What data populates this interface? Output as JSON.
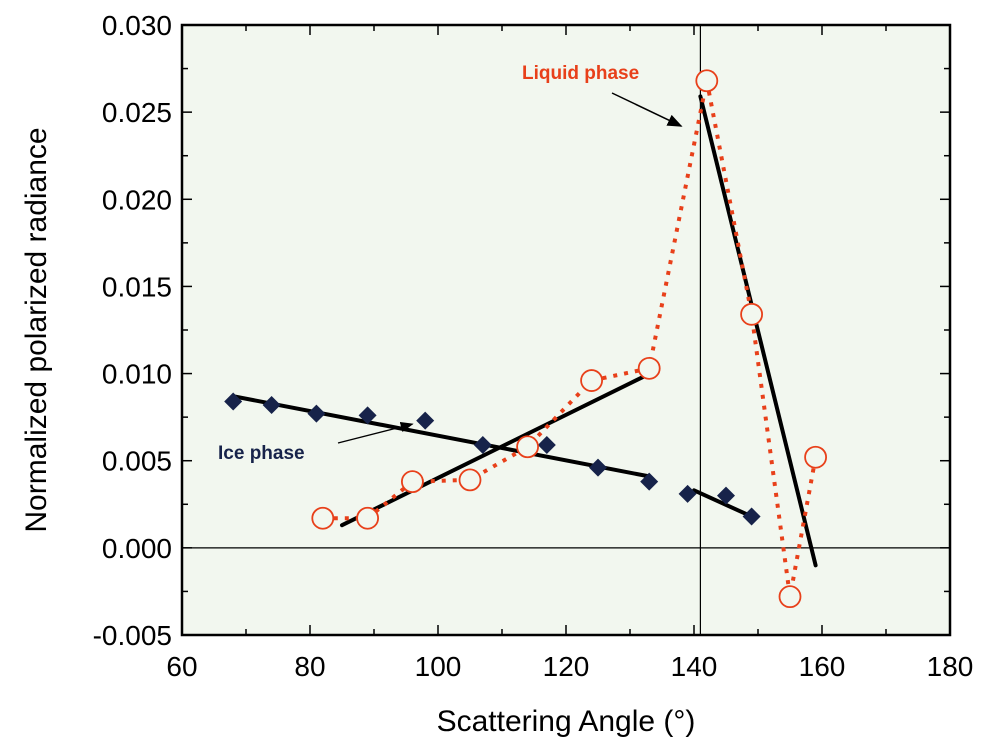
{
  "chart_data": {
    "type": "scatter",
    "title": "",
    "xlabel": "Scattering Angle (°)",
    "ylabel": "Normalized polarized radiance",
    "xlim": [
      60,
      180
    ],
    "ylim": [
      -0.005,
      0.03
    ],
    "xticks": [
      "60",
      "80",
      "100",
      "120",
      "140",
      "160",
      "180"
    ],
    "yticks": [
      "-0.005",
      "0.000",
      "0.005",
      "0.010",
      "0.015",
      "0.020",
      "0.025",
      "0.030"
    ],
    "grid": false,
    "background": "#f2f7ef",
    "series": [
      {
        "name": "Ice phase",
        "marker": "diamond",
        "color": "#17234a",
        "x": [
          68,
          74,
          81,
          89,
          98,
          107,
          117,
          125,
          133,
          139,
          145,
          149
        ],
        "y": [
          0.0084,
          0.0082,
          0.0077,
          0.0076,
          0.0073,
          0.0059,
          0.0059,
          0.0046,
          0.0038,
          0.0031,
          0.003,
          0.0018
        ]
      },
      {
        "name": "Liquid phase",
        "marker": "open-circle",
        "color": "#e8401a",
        "dotted_line": true,
        "x": [
          82,
          89,
          96,
          105,
          114,
          124,
          133,
          142,
          149,
          155,
          159
        ],
        "y": [
          0.0017,
          0.0017,
          0.0038,
          0.0039,
          0.0058,
          0.0096,
          0.0103,
          0.0268,
          0.0134,
          -0.0028,
          0.0052
        ]
      }
    ],
    "fit_lines": [
      {
        "x": [
          68,
          133
        ],
        "y": [
          0.0087,
          0.0041
        ],
        "color": "#000000"
      },
      {
        "x": [
          140,
          149
        ],
        "y": [
          0.0033,
          0.0018
        ],
        "color": "#000000"
      },
      {
        "x": [
          85,
          132
        ],
        "y": [
          0.0013,
          0.0098
        ],
        "color": "#000000"
      },
      {
        "x": [
          141,
          159
        ],
        "y": [
          0.0259,
          -0.001
        ],
        "color": "#000000"
      }
    ],
    "reference_lines": {
      "vertical_x": 141,
      "horizontal_y": 0.0
    },
    "annotations": [
      {
        "text": "Liquid phase",
        "color": "#e8401a",
        "arrow_to": [
          138,
          0.0242
        ]
      },
      {
        "text": "Ice phase",
        "color": "#17234a",
        "arrow_to": [
          96,
          0.0071
        ]
      }
    ]
  }
}
